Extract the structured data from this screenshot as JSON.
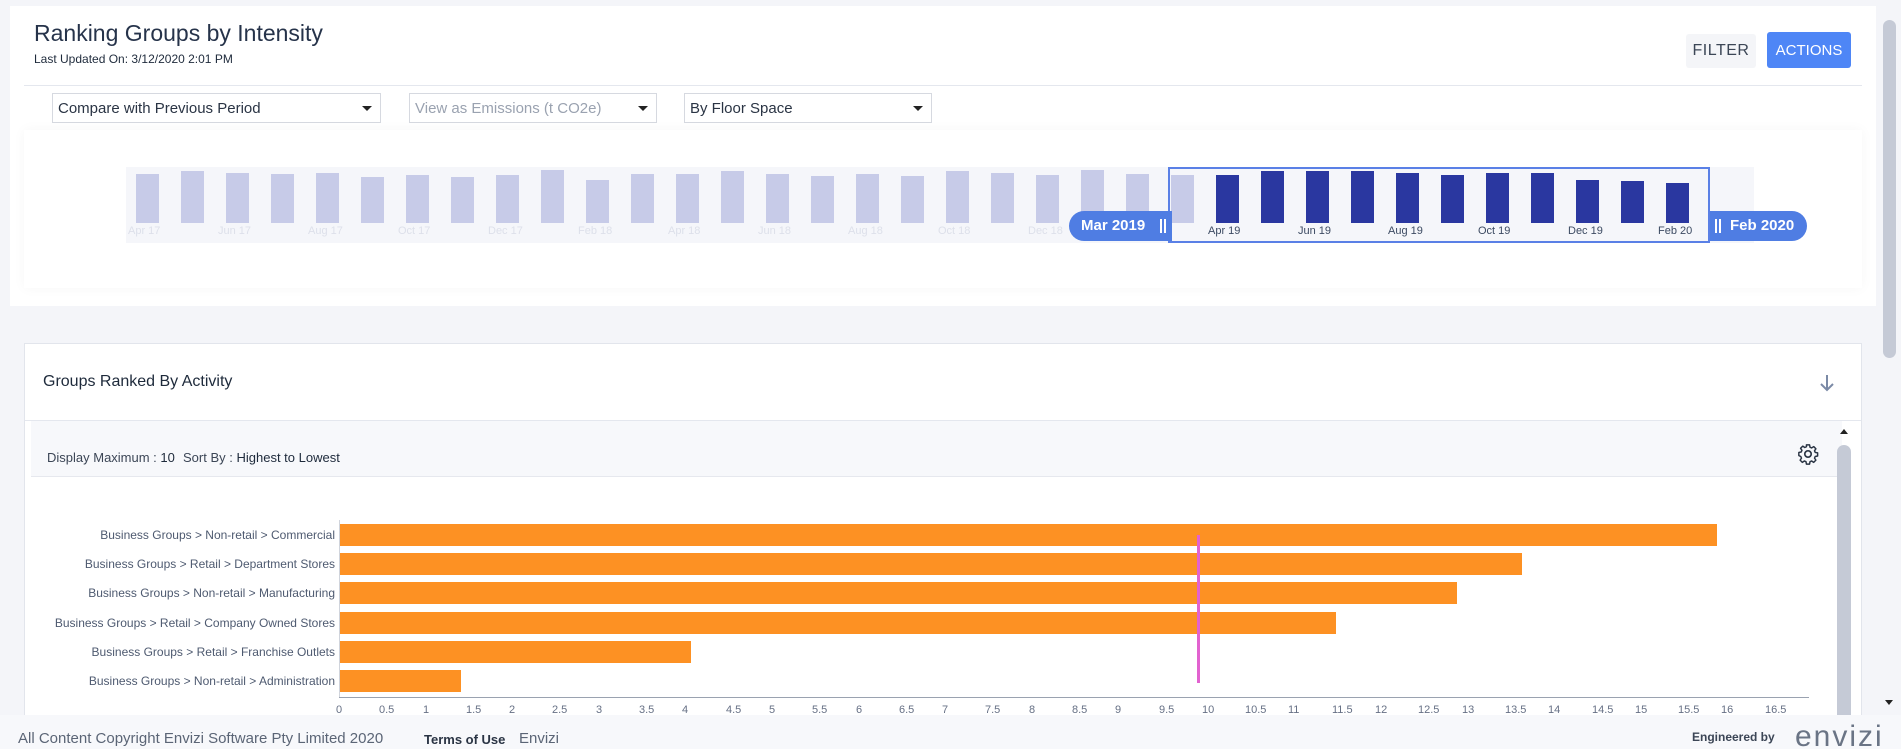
{
  "header": {
    "title": "Ranking Groups by Intensity",
    "last_updated_label": "Last Updated On:",
    "last_updated_value": "3/12/2020 2:01 PM",
    "filter_label": "FILTER",
    "actions_label": "ACTIONS"
  },
  "selects": {
    "compare": "Compare with Previous Period",
    "view_as": "View as Emissions (t CO2e)",
    "normalize": "By Floor Space"
  },
  "timeline": {
    "months": [
      "Apr 17",
      "May 17",
      "Jun 17",
      "Jul 17",
      "Aug 17",
      "Sep 17",
      "Oct 17",
      "Nov 17",
      "Dec 17",
      "Jan 18",
      "Feb 18",
      "Mar 18",
      "Apr 18",
      "May 18",
      "Jun 18",
      "Jul 18",
      "Aug 18",
      "Sep 18",
      "Oct 18",
      "Nov 18",
      "Dec 18",
      "Jan 19",
      "Feb 19",
      "Mar 19",
      "Apr 19",
      "May 19",
      "Jun 19",
      "Jul 19",
      "Aug 19",
      "Sep 19",
      "Oct 19",
      "Nov 19",
      "Dec 19",
      "Jan 20",
      "Feb 20"
    ],
    "values": [
      0.82,
      0.86,
      0.84,
      0.82,
      0.84,
      0.76,
      0.8,
      0.76,
      0.8,
      0.88,
      0.72,
      0.82,
      0.82,
      0.86,
      0.82,
      0.78,
      0.82,
      0.78,
      0.86,
      0.84,
      0.8,
      0.88,
      0.82,
      0.8,
      0.8,
      0.86,
      0.86,
      0.86,
      0.84,
      0.8,
      0.84,
      0.84,
      0.72,
      0.7,
      0.66
    ],
    "tick_labels": [
      "Apr 17",
      "Jun 17",
      "Aug 17",
      "Oct 17",
      "Dec 17",
      "Feb 18",
      "Apr 18",
      "Jun 18",
      "Aug 18",
      "Oct 18",
      "Dec 18",
      "Apr 19",
      "Jun 19",
      "Aug 19",
      "Oct 19",
      "Dec 19",
      "Feb 20"
    ],
    "selected_start": "Mar 2019",
    "selected_end": "Feb 2020",
    "colors": {
      "unselected": "#c7cbe8",
      "selected": "#2a37a0"
    }
  },
  "groups": {
    "title": "Groups Ranked By Activity",
    "display_max_label": "Display Maximum :",
    "display_max_value": "10",
    "sort_label": "Sort By :",
    "sort_value": "Highest to Lowest"
  },
  "chart_data": {
    "type": "bar",
    "orientation": "horizontal",
    "categories": [
      "Business Groups > Non-retail > Commercial",
      "Business Groups > Retail > Department Stores",
      "Business Groups > Non-retail > Manufacturing",
      "Business Groups > Retail > Company Owned Stores",
      "Business Groups > Retail > Franchise Outlets",
      "Business Groups > Non-retail > Administration"
    ],
    "values": [
      15.9,
      13.65,
      12.9,
      11.5,
      4.05,
      1.4
    ],
    "average": 9.9,
    "xlim": [
      0,
      17
    ],
    "x_ticks": [
      "0",
      "0.5",
      "1",
      "1.5",
      "2",
      "2.5",
      "3",
      "3.5",
      "4",
      "4.5",
      "5",
      "5.5",
      "6",
      "6.5",
      "7",
      "7.5",
      "8",
      "8.5",
      "9",
      "9.5",
      "10",
      "10.5",
      "11",
      "11.5",
      "12",
      "12.5",
      "13",
      "13.5",
      "14",
      "14.5",
      "15",
      "15.5",
      "16",
      "16.5"
    ],
    "colors": {
      "bar": "#fd9123",
      "average_line": "#e262d0"
    }
  },
  "footer": {
    "copyright": "All Content Copyright Envizi Software Pty Limited 2020",
    "terms": "Terms of Use",
    "envizi_link": "Envizi",
    "engineered_by": "Engineered by",
    "logo_text": "envizi"
  }
}
